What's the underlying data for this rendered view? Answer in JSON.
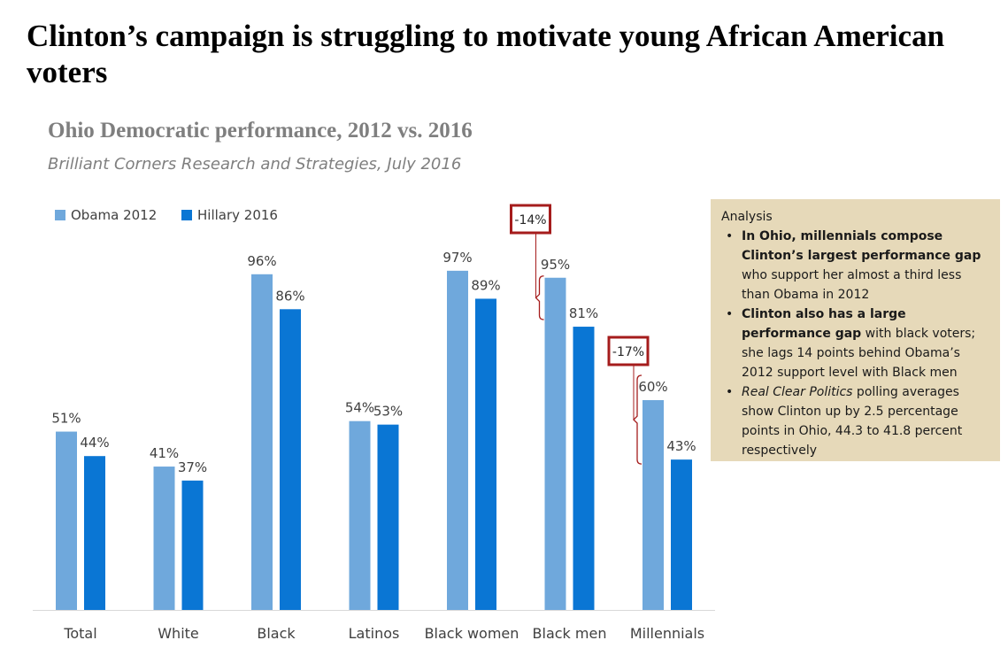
{
  "headline": "Clinton’s campaign is struggling to motivate young African American voters",
  "chart_data": {
    "type": "bar",
    "title": "Ohio Democratic performance, 2012 vs. 2016",
    "subtitle": "Brilliant Corners Research and Strategies, July 2016",
    "categories": [
      "Total",
      "White",
      "Black",
      "Latinos",
      "Black women",
      "Black men",
      "Millennials"
    ],
    "series": [
      {
        "name": "Obama 2012",
        "color": "#6fa8dc",
        "values": [
          51,
          41,
          96,
          54,
          97,
          95,
          60
        ],
        "labels": [
          "51%",
          "41%",
          "96%",
          "54%",
          "97%",
          "95%",
          "60%"
        ]
      },
      {
        "name": "Hillary 2016",
        "color": "#0a76d4",
        "values": [
          44,
          37,
          86,
          53,
          89,
          81,
          43
        ],
        "labels": [
          "44%",
          "37%",
          "86%",
          "53%",
          "89%",
          "81%",
          "43%"
        ]
      }
    ],
    "ylim": [
      0,
      100
    ],
    "legend_position": "top-left",
    "grid": false,
    "annotations": [
      {
        "category": "Black men",
        "text": "-14%",
        "color": "#a51c1c"
      },
      {
        "category": "Millennials",
        "text": "-17%",
        "color": "#a51c1c"
      }
    ]
  },
  "analysis": {
    "heading": "Analysis",
    "bullets": [
      {
        "parts": [
          {
            "text": "In Ohio, millennials compose Clinton’s largest performance gap",
            "style": "bold"
          },
          {
            "text": " who support her almost a third less than Obama in 2012",
            "style": "normal"
          }
        ]
      },
      {
        "parts": [
          {
            "text": "Clinton also has a large performance gap",
            "style": "bold"
          },
          {
            "text": " with black voters; she lags 14 points behind Obama’s 2012 support level with Black men",
            "style": "normal"
          }
        ]
      },
      {
        "parts": [
          {
            "text": "Real Clear Politics",
            "style": "ital"
          },
          {
            "text": " polling averages show Clinton up by 2.5 percentage points in Ohio, 44.3 to 41.8 percent respectively",
            "style": "normal"
          }
        ]
      }
    ]
  }
}
